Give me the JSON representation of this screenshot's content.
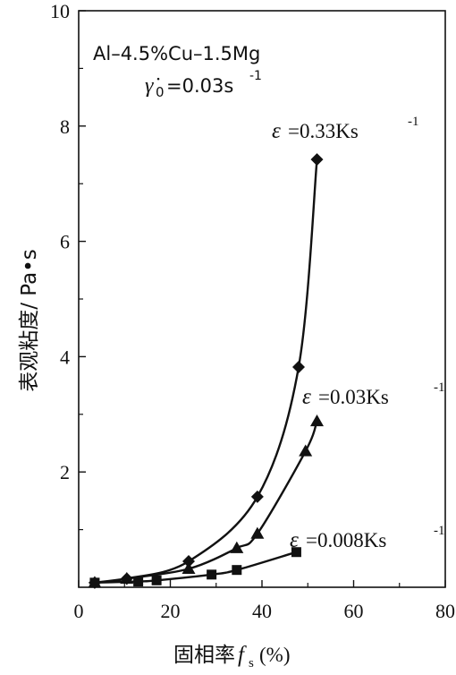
{
  "chart_data": {
    "type": "scatter",
    "xlabel": "固相率",
    "xlabel_symbol": "f",
    "xlabel_sub": "s",
    "xlabel_unit": "(%)",
    "ylabel": "表观粘度/ Pa•s",
    "xlim": [
      0,
      80
    ],
    "ylim": [
      0,
      10
    ],
    "xticks": [
      0,
      20,
      40,
      60,
      80
    ],
    "yticks": [
      2,
      4,
      6,
      8,
      10
    ],
    "grid": false,
    "annotations": {
      "alloy": "Al–4.5%Cu–1.5Mg",
      "shear_rate_symbol": "γ̇",
      "shear_rate_sub": "0",
      "shear_rate_value": "=0.03s",
      "shear_rate_exp": "-1"
    },
    "series": [
      {
        "name": "ε=0.33Ks-1",
        "label_symbol": "ε",
        "label_value": "=0.33Ks",
        "label_exp": "-1",
        "marker": "diamond",
        "color": "#111111",
        "x": [
          3.5,
          10.5,
          24,
          39,
          48,
          52
        ],
        "y": [
          0.08,
          0.15,
          0.45,
          1.57,
          3.82,
          7.42
        ]
      },
      {
        "name": "ε=0.03Ks-1",
        "label_symbol": "ε",
        "label_value": "=0.03Ks",
        "label_exp": "-1",
        "marker": "triangle",
        "color": "#111111",
        "x": [
          3.5,
          10.5,
          24,
          34.5,
          39,
          49.5,
          52
        ],
        "y": [
          0.08,
          0.15,
          0.32,
          0.68,
          0.93,
          2.36,
          2.88
        ]
      },
      {
        "name": "ε=0.008Ks-1",
        "label_symbol": "ε",
        "label_value": "=0.008Ks",
        "label_exp": "-1",
        "marker": "square",
        "color": "#111111",
        "x": [
          3.5,
          13,
          17,
          29,
          34.5,
          47.5
        ],
        "y": [
          0.08,
          0.1,
          0.12,
          0.22,
          0.3,
          0.61
        ]
      }
    ]
  }
}
